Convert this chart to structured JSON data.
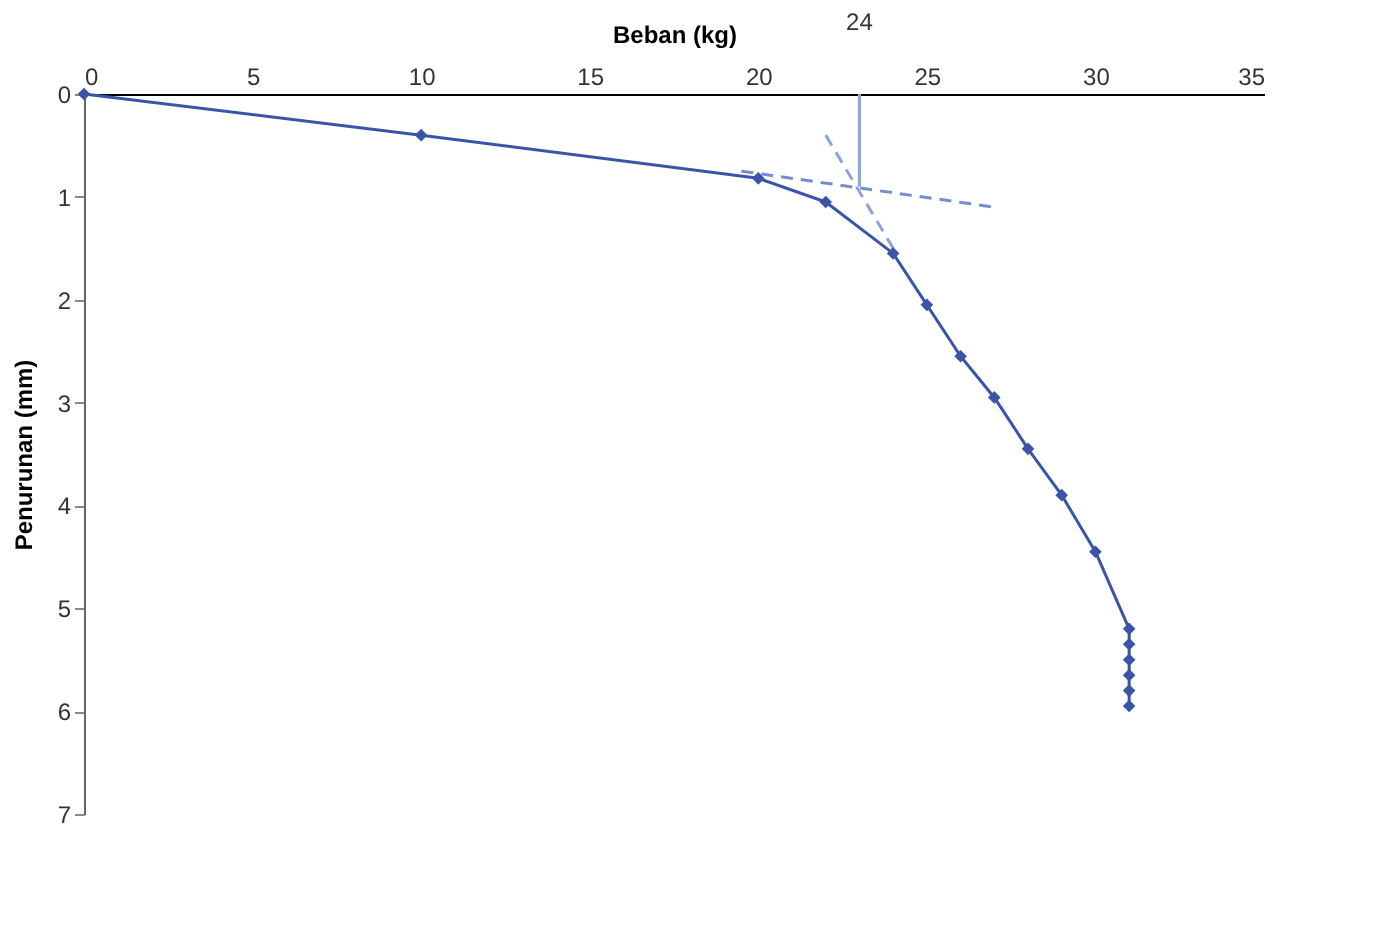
{
  "chart_data": {
    "type": "line",
    "xlabel": "Beban (kg)",
    "ylabel": "Penurunan (mm)",
    "xlim": [
      0,
      35
    ],
    "xticks": [
      0,
      5,
      10,
      15,
      20,
      25,
      30,
      35
    ],
    "ylim": [
      7,
      0
    ],
    "yticks": [
      0,
      1,
      2,
      3,
      4,
      5,
      6,
      7
    ],
    "grid": false,
    "marker": "diamond",
    "series": [
      {
        "color": "#3a55a8",
        "x": [
          0,
          10,
          20,
          22,
          24,
          25,
          26,
          27,
          28,
          29,
          30,
          31,
          31,
          31,
          31,
          31,
          31
        ],
        "values": [
          0,
          0.4,
          0.82,
          1.05,
          1.55,
          2.05,
          2.55,
          2.95,
          3.45,
          3.9,
          4.45,
          5.2,
          5.35,
          5.5,
          5.65,
          5.8,
          5.95
        ]
      },
      {
        "type": "line",
        "line_style": "dashed",
        "marker": "none",
        "color": "#6f8fd0",
        "x": [
          19.5,
          27
        ],
        "values": [
          0.75,
          1.1
        ]
      },
      {
        "type": "line",
        "line_style": "dashed",
        "marker": "none",
        "color": "#8aa5dc",
        "x": [
          22,
          24
        ],
        "values": [
          0.4,
          1.5
        ]
      },
      {
        "type": "line",
        "line_style": "solid",
        "marker": "none",
        "color": "#8aa5dc",
        "x": [
          23,
          23
        ],
        "values": [
          0.9,
          0
        ]
      }
    ],
    "annotations": [
      {
        "text": "24",
        "x": 23,
        "y": 0
      }
    ]
  }
}
